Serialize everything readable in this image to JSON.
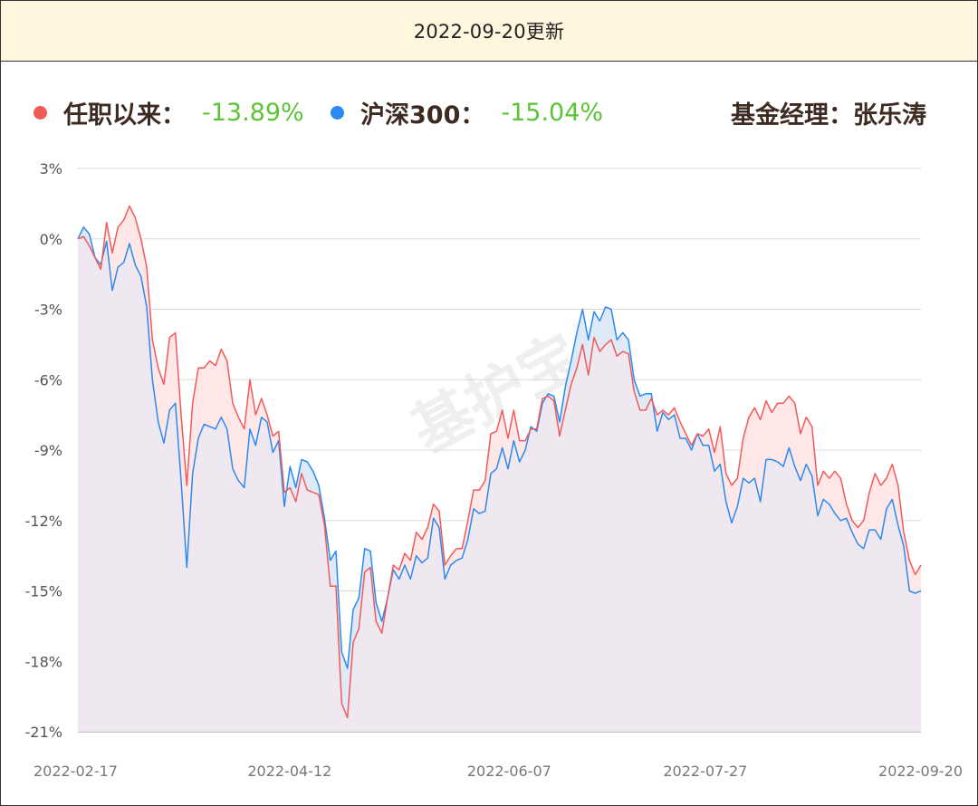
{
  "header": {
    "title": "2022-09-20更新"
  },
  "legend": {
    "fund_label": "任职以来：",
    "fund_value": "-13.89%",
    "index_label": "沪深300：",
    "index_value": "-15.04%",
    "manager_text": "基金经理：张乐涛"
  },
  "watermark": {
    "text": "基护宝"
  },
  "colors": {
    "fund": "#f25a5a",
    "index": "#2a8af0",
    "value_green": "#5cc236",
    "grid": "#d9d9d9",
    "header_bg": "#fff6de",
    "area_fill": "#ede6ee",
    "between_up": "#ffe6e6",
    "between_down": "#dce9f7"
  },
  "chart_data": {
    "type": "line",
    "y_unit": "%",
    "ylim": [
      -21,
      3
    ],
    "y_ticks": [
      "3%",
      "0%",
      "-3%",
      "-6%",
      "-9%",
      "-12%",
      "-15%",
      "-18%",
      "-21%"
    ],
    "x_ticks": [
      "2022-02-17",
      "2022-04-12",
      "2022-06-07",
      "2022-07-27",
      "2022-09-20"
    ],
    "x_start": "2022-02-17",
    "x_end": "2022-09-20",
    "grid": true,
    "series": [
      {
        "name": "任职以来",
        "values": [
          0.0,
          0.1,
          -0.3,
          -0.8,
          -1.3,
          0.7,
          -0.6,
          0.5,
          0.8,
          1.4,
          0.9,
          0.0,
          -1.2,
          -4.3,
          -5.5,
          -6.2,
          -4.2,
          -4.0,
          -7.5,
          -10.5,
          -7.0,
          -5.5,
          -5.5,
          -5.2,
          -5.4,
          -4.7,
          -5.2,
          -7.0,
          -7.6,
          -8.1,
          -6.0,
          -7.5,
          -6.8,
          -7.5,
          -8.4,
          -8.2,
          -10.8,
          -10.6,
          -11.2,
          -10.0,
          -10.7,
          -10.8,
          -10.9,
          -12.2,
          -14.8,
          -14.8,
          -19.8,
          -20.4,
          -17.2,
          -16.6,
          -14.2,
          -14.0,
          -16.3,
          -16.8,
          -15.3,
          -13.9,
          -14.1,
          -13.4,
          -13.7,
          -12.5,
          -12.8,
          -12.3,
          -11.3,
          -11.6,
          -13.9,
          -13.5,
          -13.2,
          -13.2,
          -12.0,
          -10.7,
          -10.7,
          -10.3,
          -8.3,
          -8.2,
          -7.3,
          -8.5,
          -7.3,
          -8.6,
          -8.6,
          -8.1,
          -8.1,
          -6.8,
          -6.7,
          -6.9,
          -8.4,
          -7.3,
          -6.2,
          -5.5,
          -4.5,
          -5.8,
          -4.2,
          -4.8,
          -4.5,
          -4.3,
          -5.0,
          -4.8,
          -4.9,
          -6.5,
          -7.3,
          -7.3,
          -6.8,
          -7.5,
          -7.3,
          -7.5,
          -7.2,
          -7.8,
          -8.3,
          -8.8,
          -8.3,
          -8.4,
          -8.1,
          -9.1,
          -8.0,
          -10.0,
          -10.5,
          -10.2,
          -8.5,
          -7.6,
          -7.2,
          -7.7,
          -6.9,
          -7.4,
          -7.0,
          -7.0,
          -6.7,
          -7.0,
          -8.3,
          -7.6,
          -8.0,
          -10.5,
          -9.9,
          -10.2,
          -9.9,
          -10.2,
          -11.3,
          -12.0,
          -12.3,
          -12.0,
          -10.8,
          -10.0,
          -10.5,
          -10.2,
          -9.6,
          -10.5,
          -12.5,
          -13.7,
          -14.3,
          -13.9
        ]
      },
      {
        "name": "沪深300",
        "values": [
          0.0,
          0.5,
          0.2,
          -0.8,
          -1.1,
          -0.1,
          -2.2,
          -1.2,
          -1.0,
          -0.2,
          -1.1,
          -1.6,
          -2.9,
          -6.0,
          -7.8,
          -8.7,
          -7.3,
          -7.0,
          -10.3,
          -14.0,
          -10.0,
          -8.5,
          -7.9,
          -8.0,
          -8.1,
          -7.6,
          -8.1,
          -9.8,
          -10.3,
          -10.6,
          -8.1,
          -8.8,
          -7.6,
          -7.8,
          -9.1,
          -8.6,
          -11.4,
          -9.7,
          -10.6,
          -9.4,
          -9.5,
          -9.9,
          -10.5,
          -11.9,
          -13.7,
          -13.3,
          -17.6,
          -18.3,
          -15.8,
          -15.3,
          -13.2,
          -13.3,
          -15.5,
          -16.3,
          -15.3,
          -14.1,
          -14.5,
          -13.9,
          -14.5,
          -13.5,
          -13.8,
          -13.6,
          -11.9,
          -12.3,
          -14.5,
          -13.9,
          -13.7,
          -13.6,
          -12.8,
          -11.5,
          -11.7,
          -11.6,
          -10.0,
          -9.8,
          -8.9,
          -9.8,
          -8.6,
          -9.5,
          -9.0,
          -8.0,
          -8.2,
          -7.0,
          -6.6,
          -6.7,
          -7.8,
          -6.3,
          -5.2,
          -4.0,
          -3.0,
          -4.3,
          -3.1,
          -3.5,
          -2.9,
          -3.0,
          -4.3,
          -4.0,
          -4.3,
          -6.0,
          -6.7,
          -6.6,
          -6.6,
          -8.2,
          -7.4,
          -7.7,
          -7.5,
          -8.5,
          -8.5,
          -9.0,
          -8.3,
          -8.8,
          -8.8,
          -9.9,
          -9.6,
          -11.2,
          -12.1,
          -11.4,
          -10.2,
          -10.4,
          -10.2,
          -11.2,
          -9.4,
          -9.4,
          -9.5,
          -9.7,
          -8.9,
          -9.7,
          -10.3,
          -9.6,
          -10.1,
          -11.8,
          -11.1,
          -11.3,
          -11.7,
          -12.0,
          -11.9,
          -12.5,
          -13.0,
          -13.2,
          -12.4,
          -12.4,
          -12.8,
          -11.5,
          -11.1,
          -12.2,
          -13.1,
          -15.0,
          -15.1,
          -15.0
        ]
      }
    ]
  }
}
